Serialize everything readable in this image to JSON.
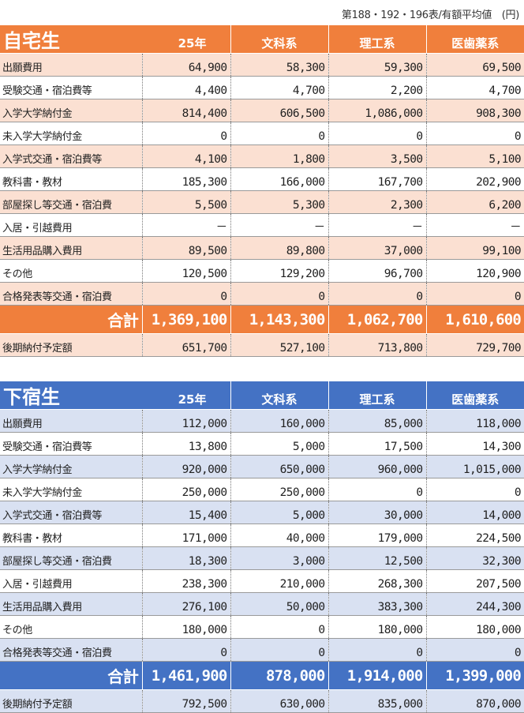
{
  "note": "第188・192・196表/有額平均値　(円)",
  "home": {
    "title": "自宅生",
    "columns": [
      "25年",
      "文科系",
      "理工系",
      "医歯薬系"
    ],
    "rows": [
      {
        "label": "出願費用",
        "values": [
          "64,900",
          "58,300",
          "59,300",
          "69,500"
        ]
      },
      {
        "label": "受験交通・宿泊費等",
        "values": [
          "4,400",
          "4,700",
          "2,200",
          "4,700"
        ]
      },
      {
        "label": "入学大学納付金",
        "values": [
          "814,400",
          "606,500",
          "1,086,000",
          "908,300"
        ]
      },
      {
        "label": "未入学大学納付金",
        "values": [
          "0",
          "0",
          "0",
          "0"
        ]
      },
      {
        "label": "入学式交通・宿泊費等",
        "values": [
          "4,100",
          "1,800",
          "3,500",
          "5,100"
        ]
      },
      {
        "label": "教科書・教材",
        "values": [
          "185,300",
          "166,000",
          "167,700",
          "202,900"
        ]
      },
      {
        "label": "部屋探し等交通・宿泊費",
        "values": [
          "5,500",
          "5,300",
          "2,300",
          "6,200"
        ]
      },
      {
        "label": "入居・引越費用",
        "values": [
          "－",
          "－",
          "－",
          "－"
        ]
      },
      {
        "label": "生活用品購入費用",
        "values": [
          "89,500",
          "89,800",
          "37,000",
          "99,100"
        ]
      },
      {
        "label": "その他",
        "values": [
          "120,500",
          "129,200",
          "96,700",
          "120,900"
        ]
      },
      {
        "label": "合格発表等交通・宿泊費",
        "values": [
          "0",
          "0",
          "0",
          "0"
        ]
      }
    ],
    "total": {
      "label": "合計",
      "values": [
        "1,369,100",
        "1,143,300",
        "1,062,700",
        "1,610,600"
      ]
    },
    "after": {
      "label": "後期納付予定額",
      "values": [
        "651,700",
        "527,100",
        "713,800",
        "729,700"
      ]
    }
  },
  "away": {
    "title": "下宿生",
    "columns": [
      "25年",
      "文科系",
      "理工系",
      "医歯薬系"
    ],
    "rows": [
      {
        "label": "出願費用",
        "values": [
          "112,000",
          "160,000",
          "85,000",
          "118,000"
        ]
      },
      {
        "label": "受験交通・宿泊費等",
        "values": [
          "13,800",
          "5,000",
          "17,500",
          "14,300"
        ]
      },
      {
        "label": "入学大学納付金",
        "values": [
          "920,000",
          "650,000",
          "960,000",
          "1,015,000"
        ]
      },
      {
        "label": "未入学大学納付金",
        "values": [
          "250,000",
          "250,000",
          "0",
          "0"
        ]
      },
      {
        "label": "入学式交通・宿泊費等",
        "values": [
          "15,400",
          "5,000",
          "30,000",
          "14,000"
        ]
      },
      {
        "label": "教科書・教材",
        "values": [
          "171,000",
          "40,000",
          "179,000",
          "224,500"
        ]
      },
      {
        "label": "部屋探し等交通・宿泊費",
        "values": [
          "18,300",
          "3,000",
          "12,500",
          "32,300"
        ]
      },
      {
        "label": "入居・引越費用",
        "values": [
          "238,300",
          "210,000",
          "268,300",
          "207,500"
        ]
      },
      {
        "label": "生活用品購入費用",
        "values": [
          "276,100",
          "50,000",
          "383,300",
          "244,300"
        ]
      },
      {
        "label": "その他",
        "values": [
          "180,000",
          "0",
          "180,000",
          "180,000"
        ]
      },
      {
        "label": "合格発表等交通・宿泊費",
        "values": [
          "0",
          "0",
          "0",
          "0"
        ]
      }
    ],
    "total": {
      "label": "合計",
      "values": [
        "1,461,900",
        "878,000",
        "1,914,000",
        "1,399,000"
      ]
    },
    "after": {
      "label": "後期納付予定額",
      "values": [
        "792,500",
        "630,000",
        "835,000",
        "870,000"
      ]
    }
  }
}
